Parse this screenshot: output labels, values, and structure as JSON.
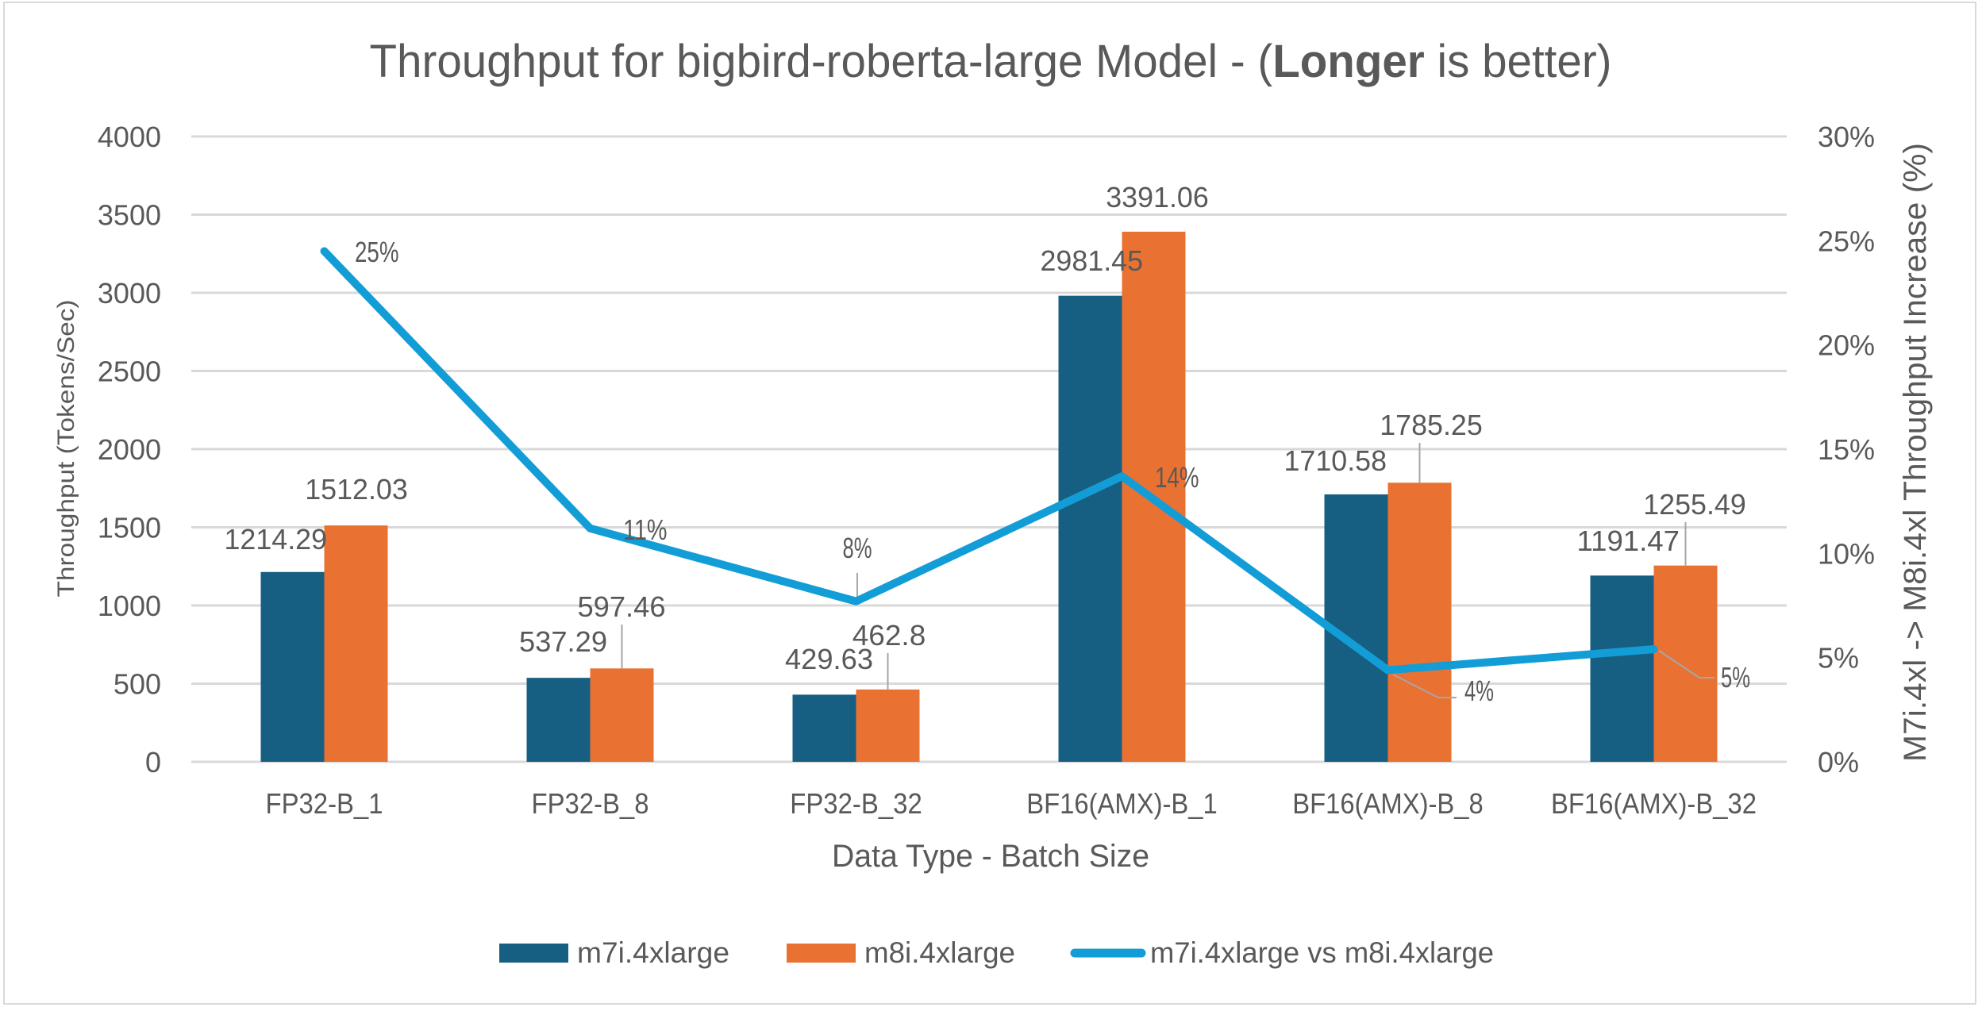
{
  "chart_data": {
    "type": "bar",
    "title": {
      "prefix": "Throughput for bigbird-roberta-large Model - (",
      "bold": "Longer",
      "suffix": " is better)"
    },
    "xlabel": "Data Type - Batch Size",
    "ylabel": "Throughput (Tokens/Sec)",
    "y2label": "M7i.4xl -> M8i.4xl Throughput Increase (%)",
    "categories": [
      "FP32-B_1",
      "FP32-B_8",
      "FP32-B_32",
      "BF16(AMX)-B_1",
      "BF16(AMX)-B_8",
      "BF16(AMX)-B_32"
    ],
    "ylim": [
      0,
      4000
    ],
    "y_ticks": [
      0,
      500,
      1000,
      1500,
      2000,
      2500,
      3000,
      3500,
      4000
    ],
    "y2lim": [
      0,
      30
    ],
    "y2_ticks": [
      "0%",
      "5%",
      "10%",
      "15%",
      "20%",
      "25%",
      "30%"
    ],
    "grid": true,
    "legend_position": "bottom",
    "series": [
      {
        "name": "m7i.4xlarge",
        "type": "bar",
        "axis": "left",
        "color": "#175f82",
        "values": [
          1214.29,
          537.29,
          429.63,
          2981.45,
          1710.58,
          1191.47
        ],
        "labels": [
          "1214.29",
          "537.29",
          "429.63",
          "2981.45",
          "1710.58",
          "1191.47"
        ]
      },
      {
        "name": "m8i.4xlarge",
        "type": "bar",
        "axis": "left",
        "color": "#e97132",
        "values": [
          1512.03,
          597.46,
          462.8,
          3391.06,
          1785.25,
          1255.49
        ],
        "labels": [
          "1512.03",
          "597.46",
          "462.8",
          "3391.06",
          "1785.25",
          "1255.49"
        ]
      },
      {
        "name": "m7i.4xlarge vs m8i.4xlarge",
        "type": "line",
        "axis": "right",
        "color": "#139dd7",
        "values": [
          24.5,
          11.2,
          7.7,
          13.7,
          4.4,
          5.4
        ],
        "labels": [
          "25%",
          "11%",
          "8%",
          "14%",
          "4%",
          "5%"
        ]
      }
    ]
  }
}
